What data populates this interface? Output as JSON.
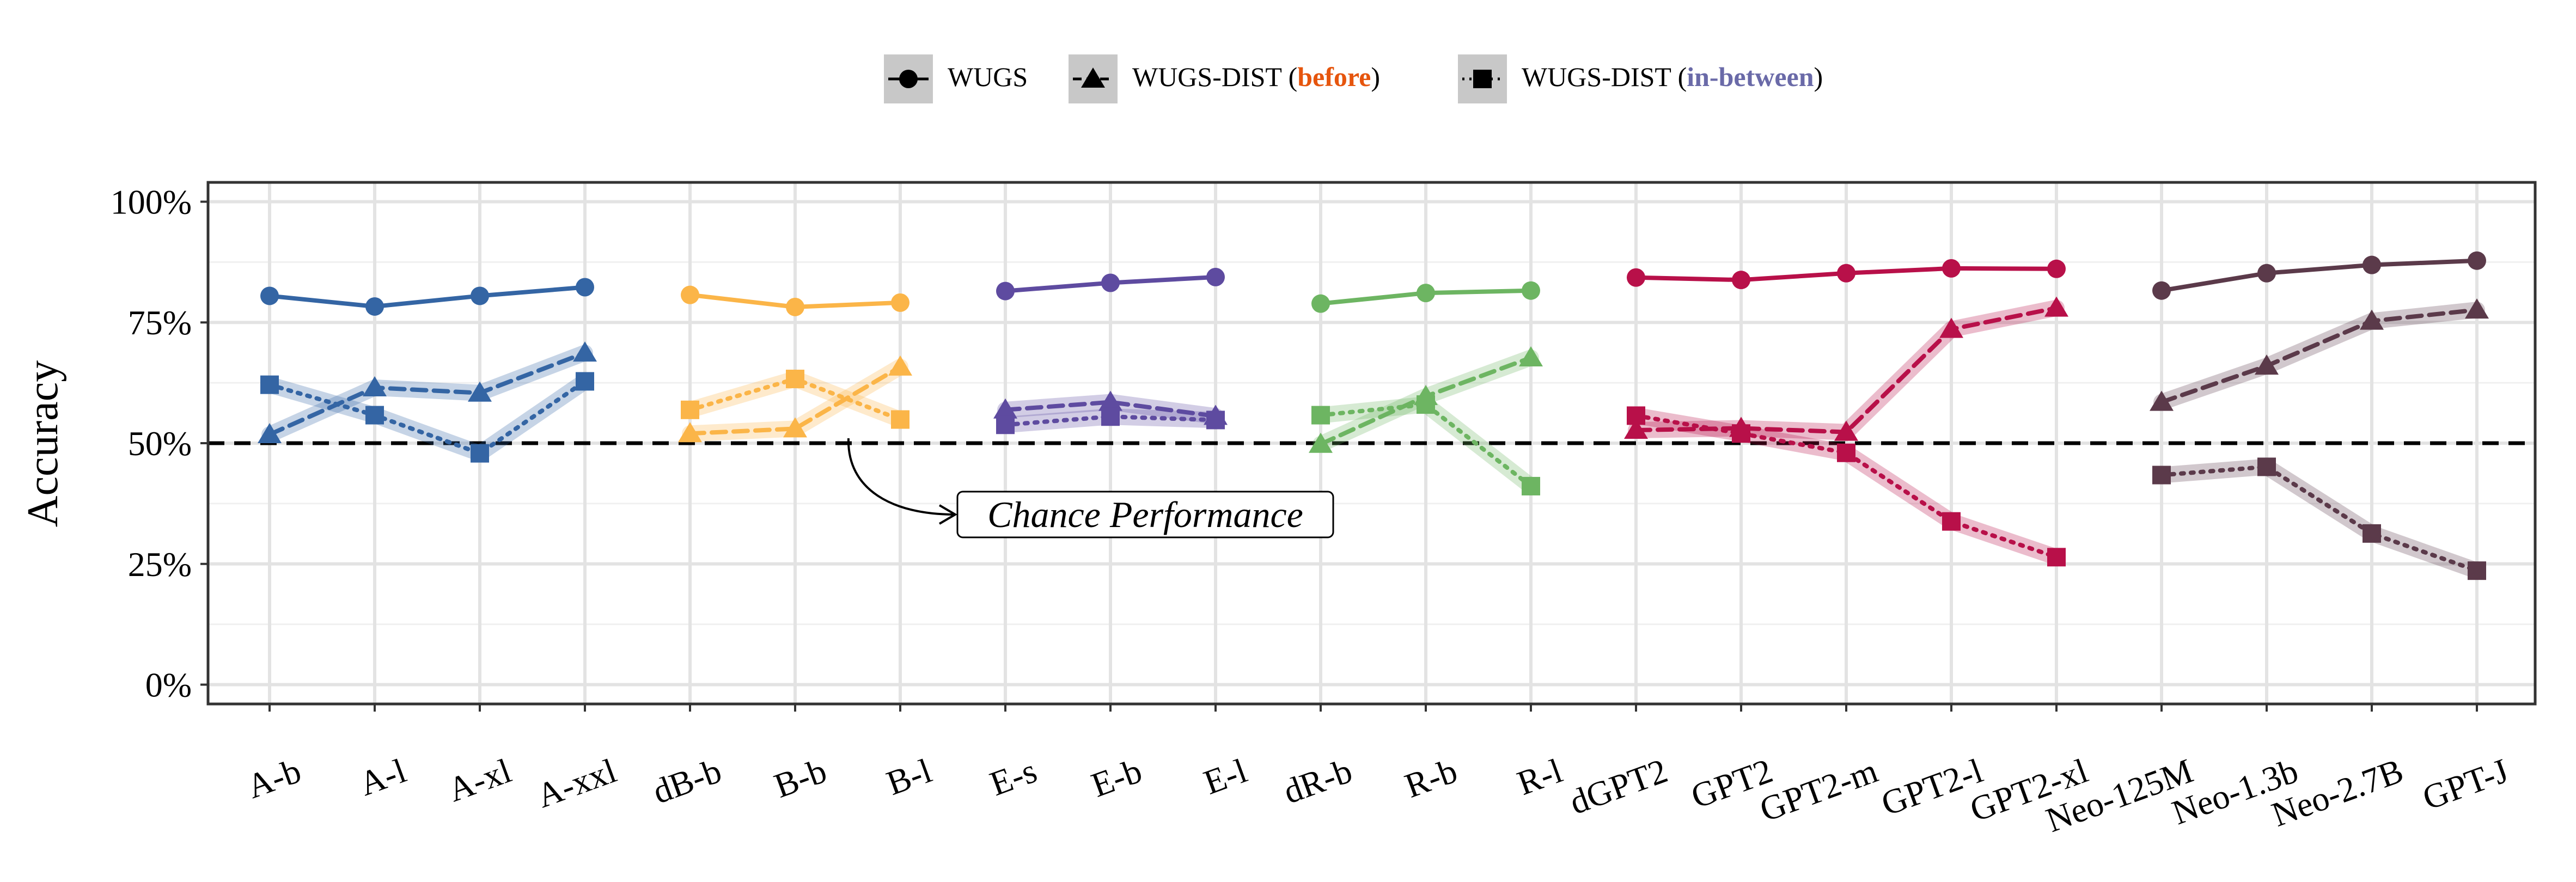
{
  "chart_data": {
    "type": "line",
    "ylabel": "Accuracy",
    "xlabel": "",
    "ylim": [
      -4,
      104
    ],
    "yticks": [
      "0%",
      "25%",
      "50%",
      "75%",
      "100%"
    ],
    "ytick_values": [
      0,
      25,
      50,
      75,
      100
    ],
    "grid": true,
    "legend_position": "top-center",
    "legend": [
      {
        "marker": "circle",
        "line": "solid",
        "parts": [
          {
            "text": "WUGS",
            "color": "#000000",
            "bold": false
          }
        ]
      },
      {
        "marker": "triangle",
        "line": "dashed",
        "parts": [
          {
            "text": "WUGS-DIST (",
            "color": "#000000",
            "bold": false
          },
          {
            "text": "before",
            "color": "#e6550d",
            "bold": true
          },
          {
            "text": ")",
            "color": "#000000",
            "bold": false
          }
        ]
      },
      {
        "marker": "square",
        "line": "dotted",
        "parts": [
          {
            "text": "WUGS-DIST (",
            "color": "#000000",
            "bold": false
          },
          {
            "text": "in-between",
            "color": "#6a6aa8",
            "bold": true
          },
          {
            "text": ")",
            "color": "#000000",
            "bold": false
          }
        ]
      }
    ],
    "categories": [
      "A-b",
      "A-l",
      "A-xl",
      "A-xxl",
      "dB-b",
      "B-b",
      "B-l",
      "E-s",
      "E-b",
      "E-l",
      "dR-b",
      "R-b",
      "R-l",
      "dGPT2",
      "GPT2",
      "GPT2-m",
      "GPT2-l",
      "GPT2-xl",
      "Neo-125M",
      "Neo-1.3b",
      "Neo-2.7B",
      "GPT-J"
    ],
    "reference_line": {
      "y": 50,
      "style": "dashed",
      "label": "Chance Performance"
    },
    "groups": [
      {
        "color": "#3465a4",
        "start": 0,
        "wugs": [
          80.5,
          78.3,
          80.5,
          82.3
        ],
        "before": [
          51.8,
          61.5,
          60.4,
          68.7
        ],
        "inbetween": [
          62.1,
          55.8,
          47.9,
          62.8
        ]
      },
      {
        "color": "#fbb548",
        "start": 4,
        "wugs": [
          80.7,
          78.2,
          79.1
        ],
        "before": [
          52.0,
          53.0,
          65.8
        ],
        "inbetween": [
          56.9,
          63.3,
          54.9
        ]
      },
      {
        "color": "#5e4ba0",
        "start": 7,
        "wugs": [
          81.5,
          83.2,
          84.4
        ],
        "before": [
          56.9,
          58.5,
          55.6
        ],
        "inbetween": [
          53.8,
          55.5,
          54.8
        ]
      },
      {
        "color": "#6db562",
        "start": 10,
        "wugs": [
          78.9,
          81.1,
          81.6
        ],
        "before": [
          49.8,
          59.7,
          67.7
        ],
        "inbetween": [
          55.8,
          58.0,
          41.1
        ]
      },
      {
        "color": "#b81049",
        "start": 13,
        "wugs": [
          84.3,
          83.8,
          85.2,
          86.2,
          86.1
        ],
        "before": [
          52.7,
          53.1,
          52.3,
          73.6,
          78.0
        ],
        "inbetween": [
          55.7,
          52.0,
          48.0,
          33.8,
          26.4
        ]
      },
      {
        "color": "#5b3a4a",
        "start": 18,
        "wugs": [
          81.6,
          85.2,
          86.9,
          87.8
        ],
        "before": [
          58.5,
          66.0,
          75.3,
          77.6
        ],
        "inbetween": [
          43.4,
          45.1,
          31.3,
          23.6
        ]
      }
    ]
  }
}
